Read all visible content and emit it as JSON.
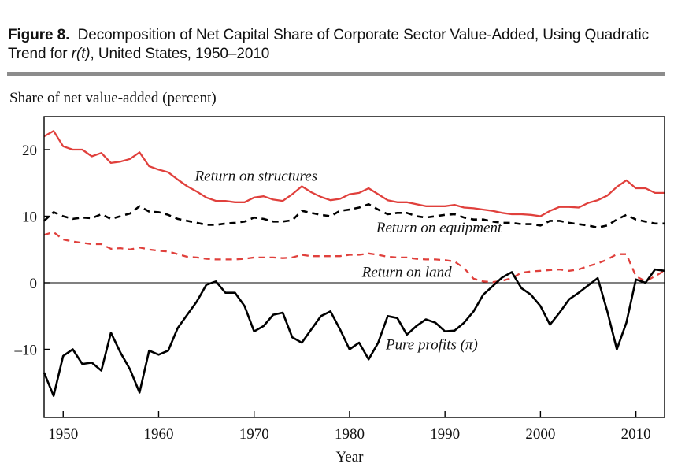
{
  "figure": {
    "label": "Figure 8.",
    "title_part1": "Decomposition of Net Capital Share of Corporate Sector Value-Added, Using Quadratic Trend for ",
    "title_var": "r(t)",
    "title_part2": ", United States, 1950–2010"
  },
  "chart_data": {
    "type": "line",
    "ylabel": "Share of net value-added (percent)",
    "xlabel": "Year",
    "xlim": [
      1948,
      2013
    ],
    "ylim": [
      -20,
      25
    ],
    "xticks": [
      1950,
      1960,
      1970,
      1980,
      1990,
      2000,
      2010
    ],
    "yticks": [
      20,
      10,
      0,
      -10
    ],
    "ytick_labels": [
      "20",
      "10",
      "0",
      "–10"
    ],
    "zero_line": true,
    "series": [
      {
        "name": "Return on structures",
        "color": "#e0403c",
        "dash": "solid",
        "x": [
          1948,
          1949,
          1950,
          1951,
          1952,
          1953,
          1954,
          1955,
          1956,
          1957,
          1958,
          1959,
          1960,
          1961,
          1962,
          1963,
          1964,
          1965,
          1966,
          1967,
          1968,
          1969,
          1970,
          1971,
          1972,
          1973,
          1974,
          1975,
          1976,
          1977,
          1978,
          1979,
          1980,
          1981,
          1982,
          1983,
          1984,
          1985,
          1986,
          1987,
          1988,
          1989,
          1990,
          1991,
          1992,
          1993,
          1994,
          1995,
          1996,
          1997,
          1998,
          1999,
          2000,
          2001,
          2002,
          2003,
          2004,
          2005,
          2006,
          2007,
          2008,
          2009,
          2010,
          2011,
          2012,
          2013
        ],
        "values": [
          22.0,
          22.8,
          20.5,
          20.0,
          20.0,
          19.0,
          19.5,
          18.0,
          18.2,
          18.6,
          19.6,
          17.5,
          17.0,
          16.6,
          15.5,
          14.5,
          13.7,
          12.8,
          12.3,
          12.3,
          12.1,
          12.1,
          12.8,
          13.0,
          12.5,
          12.3,
          13.3,
          14.5,
          13.6,
          12.9,
          12.4,
          12.6,
          13.3,
          13.5,
          14.2,
          13.3,
          12.4,
          12.1,
          12.1,
          11.8,
          11.5,
          11.5,
          11.5,
          11.7,
          11.3,
          11.2,
          11.0,
          10.8,
          10.5,
          10.3,
          10.3,
          10.2,
          10.0,
          10.8,
          11.4,
          11.4,
          11.3,
          12.0,
          12.4,
          13.1,
          14.4,
          15.4,
          14.2,
          14.2,
          13.5,
          13.5
        ]
      },
      {
        "name": "Return on equipment",
        "color": "#000000",
        "dash": "dashed",
        "x": [
          1948,
          1949,
          1950,
          1951,
          1952,
          1953,
          1954,
          1955,
          1956,
          1957,
          1958,
          1959,
          1960,
          1961,
          1962,
          1963,
          1964,
          1965,
          1966,
          1967,
          1968,
          1969,
          1970,
          1971,
          1972,
          1973,
          1974,
          1975,
          1976,
          1977,
          1978,
          1979,
          1980,
          1981,
          1982,
          1983,
          1984,
          1985,
          1986,
          1987,
          1988,
          1989,
          1990,
          1991,
          1992,
          1993,
          1994,
          1995,
          1996,
          1997,
          1998,
          1999,
          2000,
          2001,
          2002,
          2003,
          2004,
          2005,
          2006,
          2007,
          2008,
          2009,
          2010,
          2011,
          2012,
          2013
        ],
        "values": [
          9.3,
          10.6,
          10.0,
          9.6,
          9.8,
          9.7,
          10.3,
          9.6,
          10.0,
          10.4,
          11.5,
          10.7,
          10.6,
          10.2,
          9.6,
          9.3,
          9.0,
          8.7,
          8.7,
          8.9,
          9.0,
          9.2,
          9.8,
          9.6,
          9.2,
          9.2,
          9.4,
          10.8,
          10.5,
          10.2,
          10.0,
          10.8,
          11.0,
          11.3,
          11.8,
          11.0,
          10.3,
          10.5,
          10.5,
          10.0,
          9.8,
          10.0,
          10.2,
          10.3,
          9.8,
          9.5,
          9.5,
          9.2,
          9.0,
          9.0,
          8.8,
          8.8,
          8.6,
          9.3,
          9.3,
          9.0,
          8.8,
          8.6,
          8.3,
          8.6,
          9.5,
          10.2,
          9.5,
          9.2,
          8.9,
          8.9
        ]
      },
      {
        "name": "Return on land",
        "color": "#e0403c",
        "dash": "dashed",
        "x": [
          1948,
          1949,
          1950,
          1951,
          1952,
          1953,
          1954,
          1955,
          1956,
          1957,
          1958,
          1959,
          1960,
          1961,
          1962,
          1963,
          1964,
          1965,
          1966,
          1967,
          1968,
          1969,
          1970,
          1971,
          1972,
          1973,
          1974,
          1975,
          1976,
          1977,
          1978,
          1979,
          1980,
          1981,
          1982,
          1983,
          1984,
          1985,
          1986,
          1987,
          1988,
          1989,
          1990,
          1991,
          1992,
          1993,
          1994,
          1995,
          1996,
          1997,
          1998,
          1999,
          2000,
          2001,
          2002,
          2003,
          2004,
          2005,
          2006,
          2007,
          2008,
          2009,
          2010,
          2011,
          2012,
          2013
        ],
        "values": [
          7.2,
          7.6,
          6.5,
          6.2,
          6.0,
          5.8,
          5.8,
          5.1,
          5.2,
          5.0,
          5.3,
          5.0,
          4.8,
          4.7,
          4.3,
          3.9,
          3.8,
          3.6,
          3.5,
          3.5,
          3.5,
          3.6,
          3.8,
          3.8,
          3.8,
          3.7,
          3.8,
          4.2,
          4.0,
          4.0,
          4.0,
          4.0,
          4.2,
          4.2,
          4.4,
          4.2,
          3.9,
          3.8,
          3.8,
          3.6,
          3.5,
          3.5,
          3.4,
          3.2,
          2.2,
          0.6,
          0.2,
          0.1,
          0.3,
          0.7,
          1.5,
          1.7,
          1.8,
          1.9,
          2.0,
          1.8,
          2.0,
          2.5,
          2.9,
          3.5,
          4.3,
          4.3,
          1.0,
          0.2,
          1.0,
          1.8
        ]
      },
      {
        "name": "Pure profits (π)",
        "color": "#000000",
        "dash": "solid",
        "x": [
          1948,
          1949,
          1950,
          1951,
          1952,
          1953,
          1954,
          1955,
          1956,
          1957,
          1958,
          1959,
          1960,
          1961,
          1962,
          1963,
          1964,
          1965,
          1966,
          1967,
          1968,
          1969,
          1970,
          1971,
          1972,
          1973,
          1974,
          1975,
          1976,
          1977,
          1978,
          1979,
          1980,
          1981,
          1982,
          1983,
          1984,
          1985,
          1986,
          1987,
          1988,
          1989,
          1990,
          1991,
          1992,
          1993,
          1994,
          1995,
          1996,
          1997,
          1998,
          1999,
          2000,
          2001,
          2002,
          2003,
          2004,
          2005,
          2006,
          2007,
          2008,
          2009,
          2010,
          2011,
          2012,
          2013
        ],
        "values": [
          -13.5,
          -17.0,
          -11.0,
          -10.0,
          -12.2,
          -12.0,
          -13.2,
          -7.5,
          -10.5,
          -13.0,
          -16.5,
          -10.2,
          -10.8,
          -10.2,
          -6.8,
          -4.8,
          -2.8,
          -0.3,
          0.2,
          -1.5,
          -1.5,
          -3.5,
          -7.3,
          -6.5,
          -4.8,
          -4.5,
          -8.2,
          -9.0,
          -7.0,
          -5.0,
          -4.3,
          -7.0,
          -10.0,
          -9.0,
          -11.5,
          -9.0,
          -5.0,
          -5.3,
          -7.8,
          -6.5,
          -5.5,
          -6.0,
          -7.3,
          -7.2,
          -6.0,
          -4.3,
          -1.8,
          -0.5,
          0.8,
          1.6,
          -0.8,
          -1.8,
          -3.5,
          -6.3,
          -4.5,
          -2.5,
          -1.5,
          -0.4,
          0.7,
          -4.3,
          -10.0,
          -6.0,
          0.5,
          0.0,
          2.0,
          1.8
        ]
      }
    ],
    "annotations": [
      {
        "text": "Return on structures",
        "x": 1963.8,
        "y": 15.3
      },
      {
        "text": "Return on equipment",
        "x": 1982.8,
        "y": 7.6
      },
      {
        "text": "Return on land",
        "x": 1981.3,
        "y": 0.9
      },
      {
        "text": "Pure profits (π)",
        "x": 1983.8,
        "y": -10.0
      }
    ]
  }
}
